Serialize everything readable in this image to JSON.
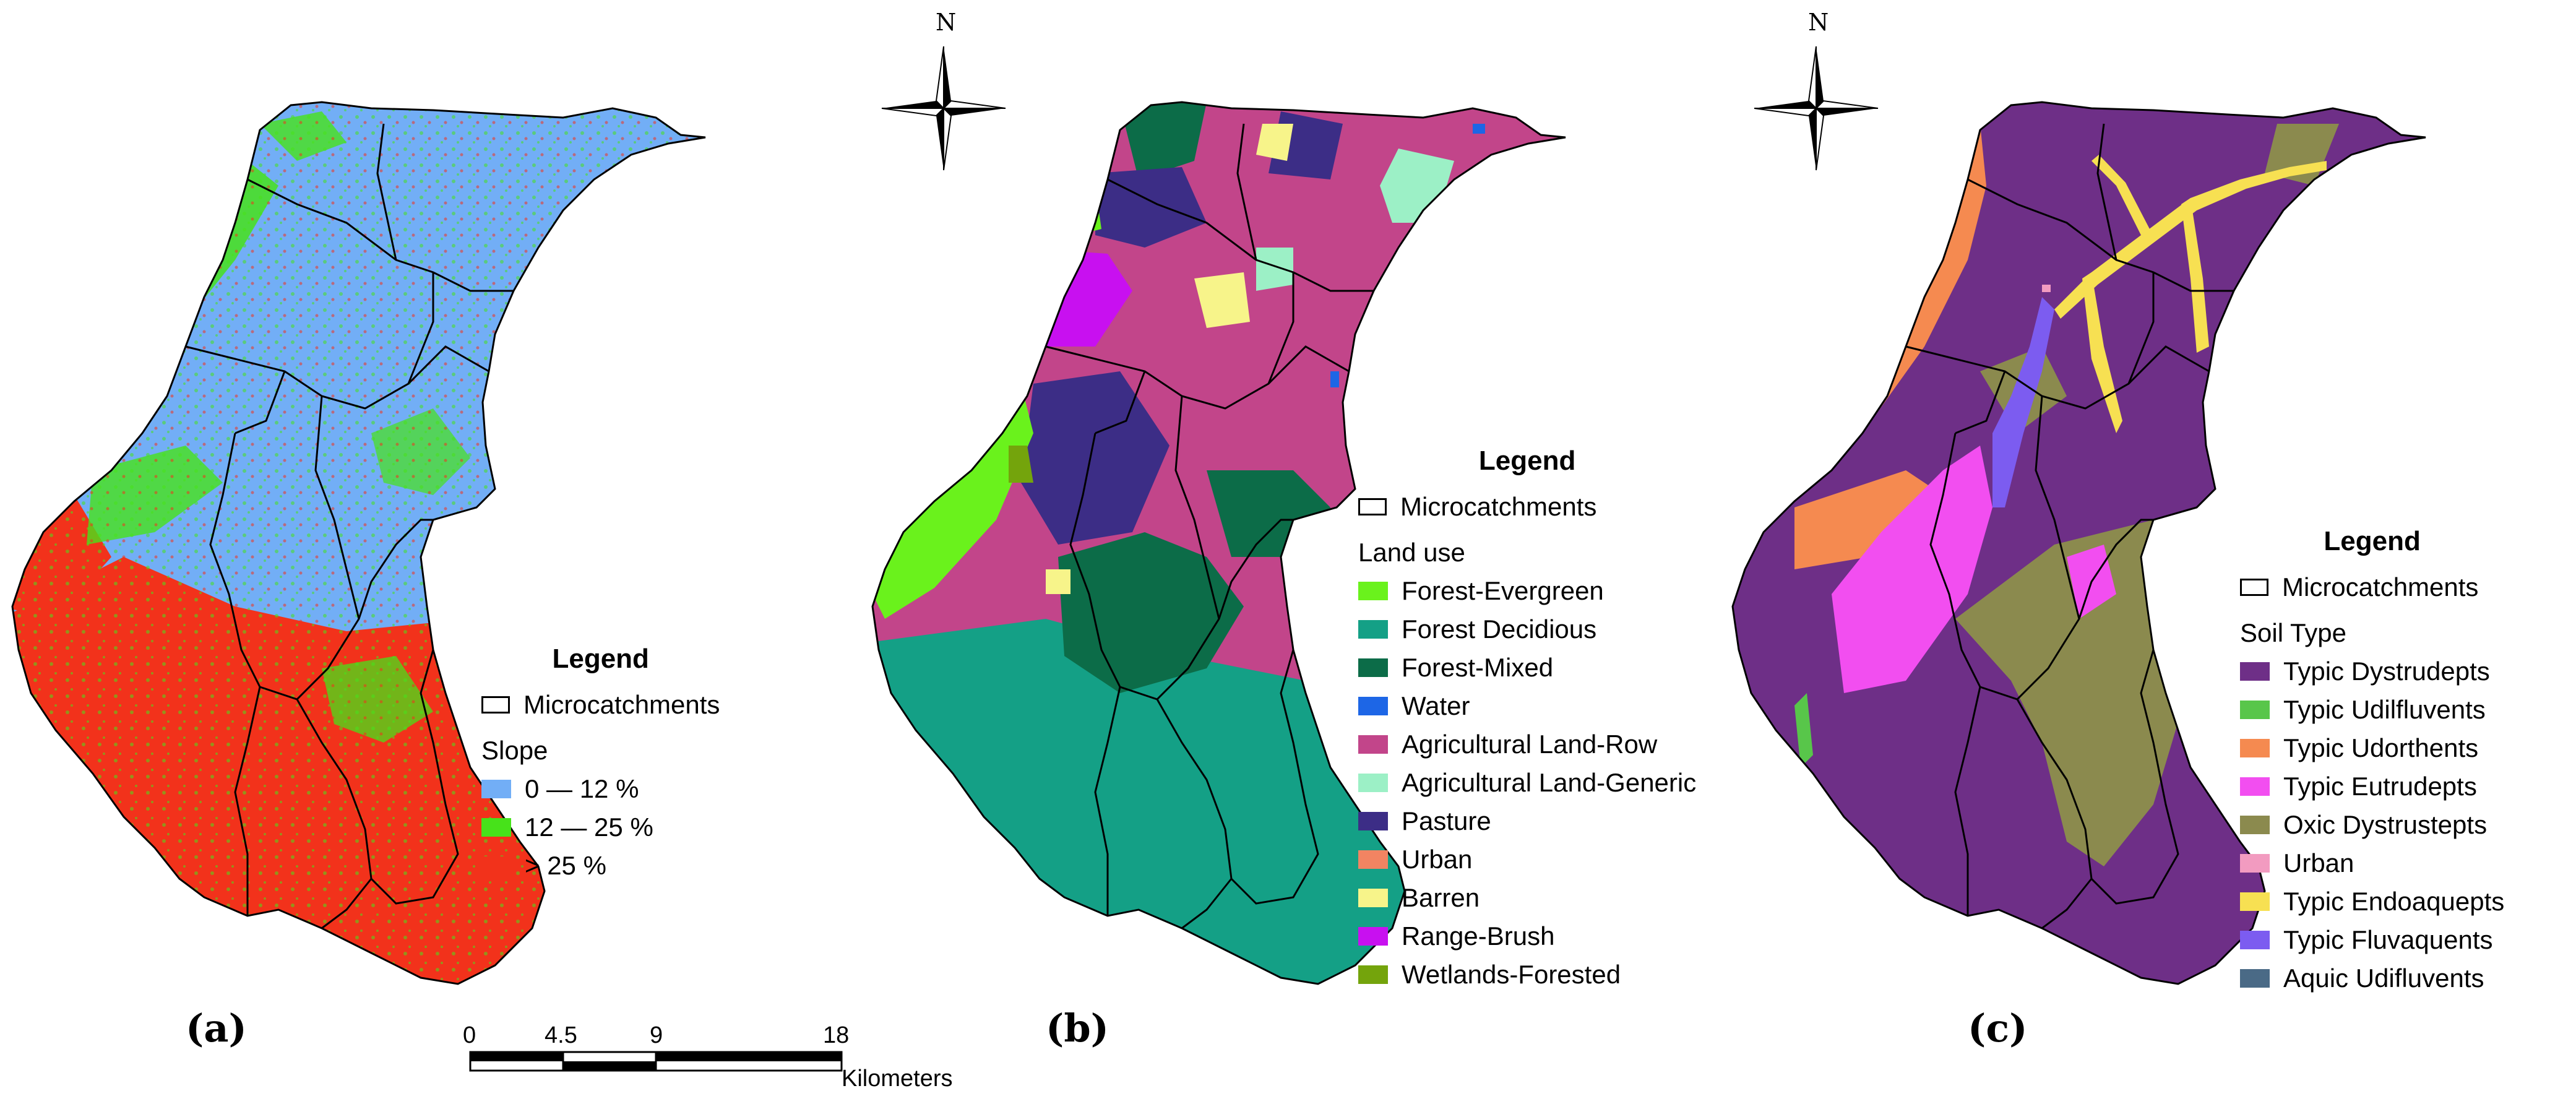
{
  "panels": [
    {
      "label": "(a)",
      "legend": {
        "title": "Legend",
        "boundary": "Microcatchments",
        "group": "Slope",
        "items": [
          {
            "label": "0 — 12 %",
            "color": "#72aef6"
          },
          {
            "label": "12 — 25 %",
            "color": "#47e21a"
          },
          {
            "label": "> 25 %",
            "color": "#f2321b"
          }
        ]
      }
    },
    {
      "label": "(b)",
      "north": "N",
      "legend": {
        "title": "Legend",
        "boundary": "Microcatchments",
        "group": "Land use",
        "items": [
          {
            "label": "Forest-Evergreen",
            "color": "#6af21c"
          },
          {
            "label": "Forest Decidious",
            "color": "#14a086"
          },
          {
            "label": "Forest-Mixed",
            "color": "#0c6c48"
          },
          {
            "label": "Water",
            "color": "#1d66e6"
          },
          {
            "label": "Agricultural Land-Row",
            "color": "#c2458a"
          },
          {
            "label": "Agricultural Land-Generic",
            "color": "#9cf0c6"
          },
          {
            "label": "Pasture",
            "color": "#3c2d86"
          },
          {
            "label": "Urban",
            "color": "#f28462"
          },
          {
            "label": "Barren",
            "color": "#f7f48a"
          },
          {
            "label": "Range-Brush",
            "color": "#c810f0"
          },
          {
            "label": "Wetlands-Forested",
            "color": "#74a40c"
          }
        ]
      }
    },
    {
      "label": "(c)",
      "north": "N",
      "legend": {
        "title": "Legend",
        "boundary": "Microcatchments",
        "group": "Soil Type",
        "items": [
          {
            "label": "Typic Dystrudepts",
            "color": "#6e2f87"
          },
          {
            "label": "Typic Udilfluvents",
            "color": "#58c64a"
          },
          {
            "label": "Typic Udorthents",
            "color": "#f58a50"
          },
          {
            "label": "Typic Eutrudepts",
            "color": "#f24ef0"
          },
          {
            "label": "Oxic Dystrustepts",
            "color": "#8b8a4e"
          },
          {
            "label": "Urban",
            "color": "#f29bc0"
          },
          {
            "label": "Typic Endoaquepts",
            "color": "#f7e052"
          },
          {
            "label": "Typic Fluvaquents",
            "color": "#7c5cf0"
          },
          {
            "label": "Aquic Udifluvents",
            "color": "#4a6a86"
          }
        ]
      }
    }
  ],
  "scale_bar": {
    "ticks": [
      "0",
      "4.5",
      "9",
      "18"
    ],
    "unit": "Kilometers"
  }
}
